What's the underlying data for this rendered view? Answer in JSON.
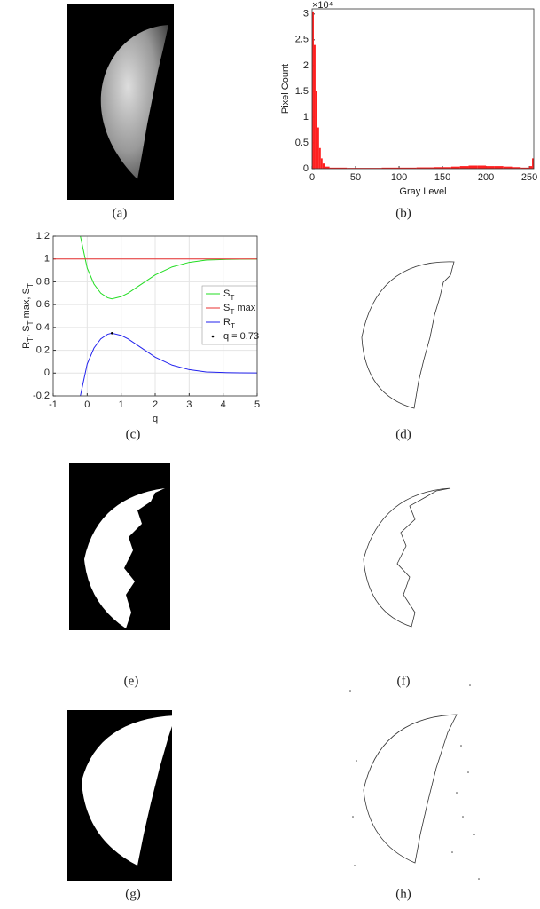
{
  "captions": [
    "(a)",
    "(b)",
    "(c)",
    "(d)",
    "(e)",
    "(f)",
    "(g)",
    "(h)"
  ],
  "chart_data": [
    {
      "type": "histogram",
      "xlabel": "Gray Level",
      "ylabel": "Pixel Count",
      "y_multiplier": "×10⁴",
      "color": "#ff2020",
      "bins": [
        0,
        2,
        4,
        6,
        8,
        10,
        12,
        15,
        20,
        40,
        60,
        80,
        100,
        120,
        140,
        160,
        170,
        180,
        190,
        200,
        210,
        220,
        230,
        240,
        250,
        253,
        255
      ],
      "values": [
        3.05,
        2.4,
        1.5,
        0.8,
        0.4,
        0.2,
        0.1,
        0.04,
        0.02,
        0.015,
        0.015,
        0.02,
        0.02,
        0.025,
        0.03,
        0.04,
        0.05,
        0.06,
        0.06,
        0.05,
        0.05,
        0.04,
        0.03,
        0.02,
        0.05,
        0.2
      ],
      "xlim": [
        0,
        255
      ],
      "xticks": [
        0,
        50,
        100,
        150,
        200,
        250
      ],
      "ylim": [
        0,
        3.1
      ],
      "yticks": [
        0,
        0.5,
        1,
        1.5,
        2,
        2.5,
        3
      ],
      "grid": false
    },
    {
      "type": "line",
      "xlabel": "q",
      "ylabel": "R_T, S_T max, S_T",
      "grid": true,
      "legend": "right",
      "xlim": [
        -1,
        5
      ],
      "xticks": [
        -1,
        0,
        1,
        2,
        3,
        4,
        5
      ],
      "ylim": [
        -0.2,
        1.2
      ],
      "yticks": [
        -0.2,
        0,
        0.2,
        0.4,
        0.6,
        0.8,
        1,
        1.2
      ],
      "series": [
        {
          "name": "S_T",
          "color": "#22dd22",
          "x": [
            -0.2,
            0,
            0.2,
            0.4,
            0.6,
            0.73,
            1,
            1.2,
            1.5,
            2,
            2.5,
            3,
            3.5,
            4,
            4.5,
            5
          ],
          "values": [
            1.2,
            0.92,
            0.78,
            0.7,
            0.66,
            0.65,
            0.67,
            0.7,
            0.76,
            0.86,
            0.93,
            0.97,
            0.99,
            0.995,
            0.998,
            0.999
          ]
        },
        {
          "name": "S_T max",
          "color": "#e83030",
          "x": [
            -1,
            5
          ],
          "values": [
            1,
            1
          ]
        },
        {
          "name": "R_T",
          "color": "#2222ee",
          "x": [
            -0.2,
            0,
            0.2,
            0.4,
            0.6,
            0.73,
            1,
            1.2,
            1.5,
            2,
            2.5,
            3,
            3.5,
            4,
            4.5,
            5
          ],
          "values": [
            -0.2,
            0.08,
            0.22,
            0.3,
            0.34,
            0.35,
            0.33,
            0.3,
            0.24,
            0.14,
            0.07,
            0.03,
            0.01,
            0.005,
            0.002,
            0.001
          ]
        },
        {
          "name": "q = 0.73",
          "color": "#000000",
          "style": "point",
          "x": [
            0.73
          ],
          "values": [
            0.35
          ]
        }
      ]
    }
  ]
}
